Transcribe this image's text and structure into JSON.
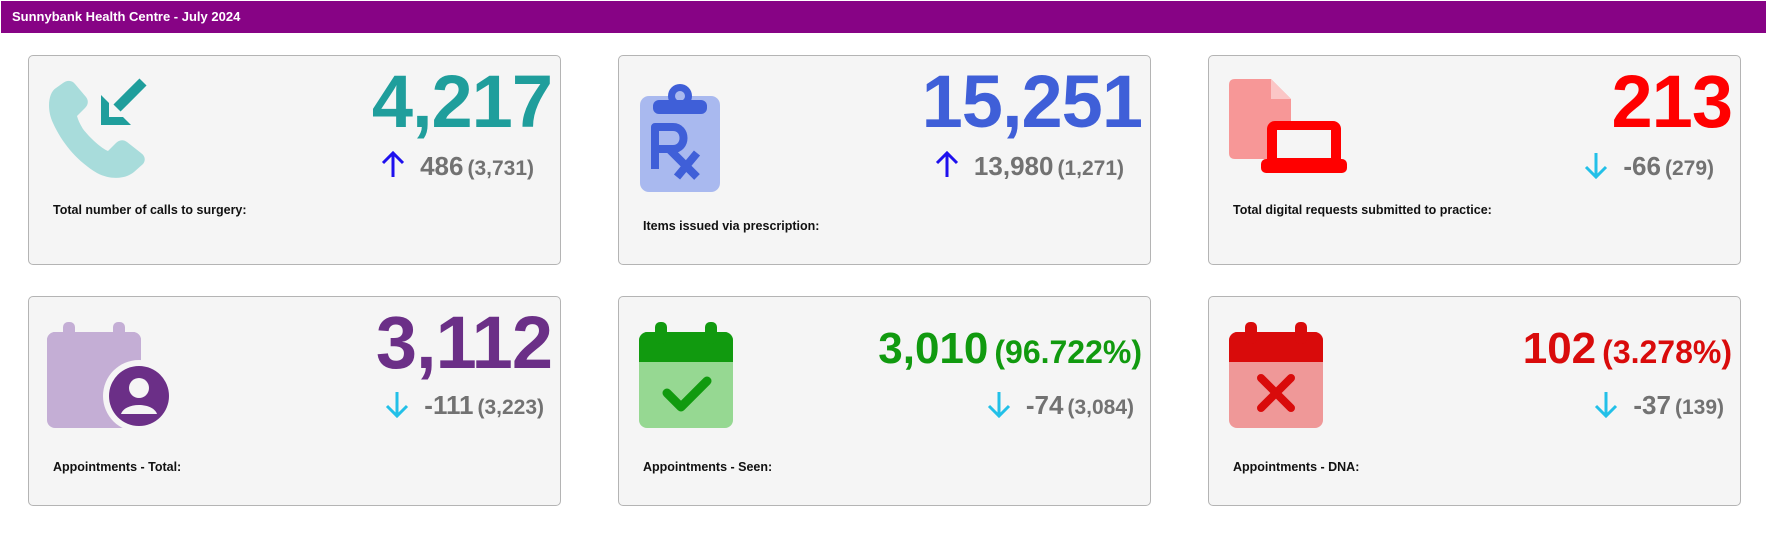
{
  "header": {
    "title": "Sunnybank Health Centre - July 2024"
  },
  "colors": {
    "header_bg": "#870385",
    "up_arrow": "#1e10ee",
    "down_arrow": "#22c0e8",
    "delta_text": "#727272",
    "calls": "#1f9e9c",
    "prescriptions": "#3f5fd8",
    "digital": "#ff0000",
    "appointments_total": "#6b2f87",
    "appointments_seen": "#119a0f",
    "appointments_dna": "#d90b0b"
  },
  "cards": [
    {
      "value": "4,217",
      "delta": "486",
      "previous": "(3,731)",
      "trend": "up",
      "caption": "Total number of calls to surgery:",
      "icon": "incoming-call-icon"
    },
    {
      "value": "15,251",
      "delta": "13,980",
      "previous": "(1,271)",
      "trend": "up",
      "caption": "Items issued via prescription:",
      "icon": "prescription-clipboard-icon"
    },
    {
      "value": "213",
      "delta": "-66",
      "previous": "(279)",
      "trend": "down",
      "caption": "Total digital requests submitted to practice:",
      "icon": "document-laptop-icon"
    },
    {
      "value": "3,112",
      "delta": "-111",
      "previous": "(3,223)",
      "trend": "down",
      "caption": "Appointments - Total:",
      "icon": "calendar-user-icon"
    },
    {
      "value": "3,010",
      "percent": "(96.722%)",
      "delta": "-74",
      "previous": "(3,084)",
      "trend": "down",
      "caption": "Appointments - Seen:",
      "icon": "calendar-check-icon"
    },
    {
      "value": "102",
      "percent": "(3.278%)",
      "delta": "-37",
      "previous": "(139)",
      "trend": "down",
      "caption": "Appointments - DNA:",
      "icon": "calendar-cross-icon"
    }
  ]
}
